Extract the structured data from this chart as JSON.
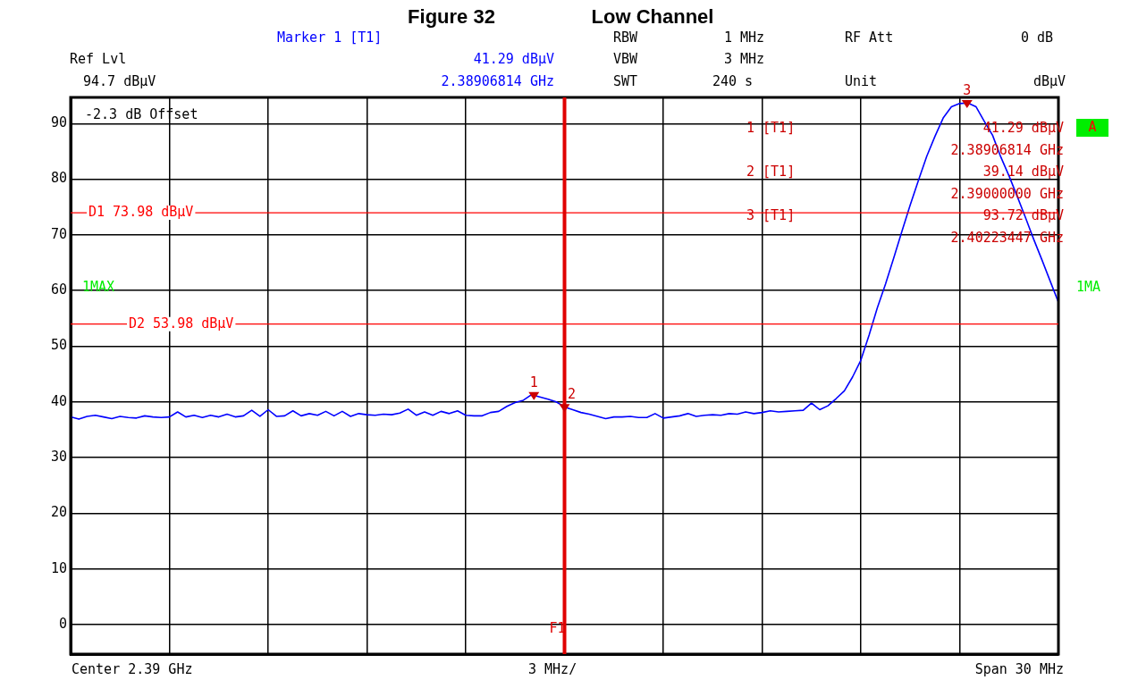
{
  "chart_data": {
    "type": "line",
    "title": "Figure 32",
    "subtitle": "Low Channel",
    "categories": [
      null,
      null,
      null,
      null,
      null,
      null,
      null,
      null,
      null,
      null,
      null,
      null,
      null,
      null,
      null,
      null,
      null,
      null,
      null,
      null,
      null,
      null,
      null,
      null,
      null,
      null,
      null,
      null,
      null,
      null,
      null,
      null,
      null,
      null,
      null,
      null,
      null,
      null,
      null,
      null,
      null,
      null,
      null,
      null,
      null,
      null,
      null,
      null,
      null,
      null,
      null,
      null,
      null,
      null,
      null,
      null,
      null,
      null,
      null,
      null,
      null,
      null,
      null,
      null,
      null,
      null,
      null,
      null,
      null,
      null,
      null,
      null,
      null,
      null,
      null,
      null,
      null,
      null,
      null,
      null,
      null,
      null,
      null,
      null,
      null,
      null,
      null,
      null,
      null,
      null,
      null,
      null,
      null,
      null,
      null,
      null,
      null,
      null,
      null,
      null,
      null,
      null,
      null,
      null,
      null,
      null,
      null,
      null,
      null,
      null,
      null,
      null,
      null,
      null,
      null,
      null,
      null,
      null,
      null,
      null,
      null
    ],
    "series": [
      {
        "color": "#0000ff",
        "values": [
          37.3,
          36.9,
          37.4,
          37.6,
          37.3,
          37.0,
          37.4,
          37.2,
          37.1,
          37.5,
          37.3,
          37.2,
          37.3,
          38.2,
          37.3,
          37.6,
          37.2,
          37.6,
          37.3,
          37.8,
          37.3,
          37.5,
          38.5,
          37.4,
          38.6,
          37.4,
          37.5,
          38.4,
          37.5,
          37.9,
          37.6,
          38.3,
          37.5,
          38.3,
          37.4,
          37.9,
          37.7,
          37.6,
          37.8,
          37.7,
          38.0,
          38.7,
          37.6,
          38.2,
          37.6,
          38.3,
          37.9,
          38.4,
          37.6,
          37.5,
          37.5,
          38.1,
          38.3,
          39.2,
          39.9,
          40.3,
          41.3,
          40.9,
          40.5,
          40.0,
          39.1,
          38.6,
          38.1,
          37.8,
          37.4,
          37.0,
          37.3,
          37.3,
          37.4,
          37.2,
          37.2,
          37.9,
          37.1,
          37.3,
          37.5,
          37.9,
          37.4,
          37.6,
          37.7,
          37.6,
          37.9,
          37.8,
          38.2,
          37.9,
          38.1,
          38.4,
          38.2,
          38.3,
          38.4,
          38.5,
          39.8,
          38.6,
          39.3,
          40.6,
          42.0,
          44.5,
          47.5,
          52.0,
          56.9,
          61.2,
          65.9,
          70.7,
          75.4,
          79.8,
          84.1,
          87.7,
          91.0,
          93.0,
          93.6,
          93.7,
          93.0,
          90.4,
          87.9,
          84.0,
          80.6,
          76.9,
          73.1,
          69.2,
          65.5,
          61.7,
          57.9
        ]
      }
    ],
    "ylim": [
      -5.3,
      94.7
    ],
    "yticks": [
      0,
      10,
      20,
      30,
      40,
      50,
      60,
      70,
      80,
      90
    ],
    "tick_labels": "y",
    "grid": true,
    "marker": "none",
    "line_style": "solid",
    "ref_lines": [
      {
        "axis": "y",
        "value": 73.98,
        "label": "D1 73.98 dBµV",
        "color": "#ff0000"
      },
      {
        "axis": "y",
        "value": 53.98,
        "label": "D2 53.98 dBµV",
        "color": "#ff0000"
      },
      {
        "axis": "x",
        "label": "F1",
        "color": "#e00000"
      }
    ],
    "annotations": [
      "Marker 1 [T1]",
      "41.29 dBµV",
      "2.38906814 GHz",
      "Ref Lvl",
      "94.7 dBµV",
      "RBW",
      "1 MHz",
      "RF Att",
      "0 dB",
      "VBW",
      "3 MHz",
      "SWT",
      "240 s",
      "Unit",
      "dBµV",
      "-2.3 dB Offset",
      "A",
      "1MAX",
      "1MA",
      "1 [T1]",
      "41.29 dBµV",
      "2.38906814 GHz",
      "2 [T1]",
      "39.14 dBµV",
      "2.39000000 GHz",
      "3 [T1]",
      "93.72 dBµV",
      "2.40223447 GHz",
      "Center 2.39 GHz",
      "3 MHz/",
      "Span 30 MHz",
      {
        "text": "1",
        "y": 41.29
      },
      {
        "text": "2",
        "y": 39.14
      },
      {
        "text": "3",
        "y": 93.72
      }
    ]
  }
}
